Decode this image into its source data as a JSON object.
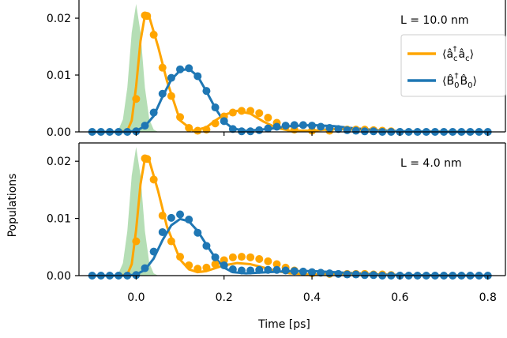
{
  "figure": {
    "ylabel": "Populations",
    "xlabel": "Time [ps]",
    "x_ticks": [
      "0.0",
      "0.2",
      "0.4",
      "0.6",
      "0.8"
    ],
    "legend": {
      "items": [
        {
          "label": "⟨â",
          "sub": "c",
          "sup": "†",
          "label2": "â",
          "sub2": "c",
          "close": "⟩",
          "color": "#ffa500"
        },
        {
          "label": "⟨B̂",
          "sub": "0",
          "sup": "†",
          "label2": "B̂",
          "sub2": "0",
          "close": "⟩",
          "color": "#1f77b4"
        }
      ]
    }
  },
  "chart_data": [
    {
      "type": "line",
      "annotation": "L = 10.0 nm",
      "xlim": [
        -0.13,
        0.84
      ],
      "ylim": [
        0,
        0.022
      ],
      "y_ticks": [
        "0.00",
        "0.01",
        "0.02"
      ],
      "pulse": {
        "color": "#a8d8a8",
        "x": [
          -0.05,
          -0.04,
          -0.03,
          -0.02,
          -0.01,
          0.0,
          0.01,
          0.02,
          0.03,
          0.04,
          0.05
        ],
        "y": [
          0.0,
          0.0004,
          0.0022,
          0.0078,
          0.0175,
          0.0225,
          0.0175,
          0.0078,
          0.0022,
          0.0004,
          0.0
        ]
      },
      "series": [
        {
          "name": "⟨â†c âc⟩",
          "color": "#ffa500",
          "line": {
            "x": [
              -0.04,
              -0.02,
              -0.01,
              0.0,
              0.01,
              0.02,
              0.03,
              0.05,
              0.07,
              0.1,
              0.13,
              0.16,
              0.18,
              0.2,
              0.23,
              0.26,
              0.29,
              0.32,
              0.35,
              0.4,
              0.45,
              0.5,
              0.55,
              0.6,
              0.8
            ],
            "y": [
              0.0,
              0.0002,
              0.002,
              0.008,
              0.016,
              0.0205,
              0.0202,
              0.015,
              0.009,
              0.002,
              0.0002,
              0.0008,
              0.002,
              0.003,
              0.0037,
              0.0032,
              0.0018,
              0.0007,
              0.0002,
              0.0002,
              0.0005,
              0.0004,
              0.0003,
              0.0001,
              0.0
            ]
          },
          "points": {
            "x": [
              0.0,
              0.02,
              0.025,
              0.04,
              0.06,
              0.08,
              0.1,
              0.12,
              0.14,
              0.16,
              0.18,
              0.2,
              0.22,
              0.24,
              0.26,
              0.28,
              0.3,
              0.32,
              0.34,
              0.36,
              0.4,
              0.44,
              0.48,
              0.5,
              0.52,
              0.54,
              0.56,
              0.58
            ],
            "y": [
              0.0058,
              0.0205,
              0.0204,
              0.0171,
              0.0113,
              0.0063,
              0.0026,
              0.0007,
              0.0002,
              0.0004,
              0.0015,
              0.0027,
              0.0034,
              0.0037,
              0.0037,
              0.0033,
              0.0025,
              0.0016,
              0.0009,
              0.0004,
              0.0002,
              0.0002,
              0.0004,
              0.0004,
              0.0004,
              0.0003,
              0.0002,
              0.0001
            ]
          }
        },
        {
          "name": "⟨B̂†0 B̂0⟩",
          "color": "#1f77b4",
          "line": {
            "x": [
              -0.1,
              -0.02,
              0.0,
              0.02,
              0.04,
              0.06,
              0.08,
              0.1,
              0.12,
              0.14,
              0.16,
              0.18,
              0.2,
              0.22,
              0.25,
              0.3,
              0.35,
              0.4,
              0.45,
              0.5,
              0.55,
              0.6,
              0.7,
              0.8
            ],
            "y": [
              0.0,
              0.0,
              0.0002,
              0.001,
              0.0028,
              0.0062,
              0.0092,
              0.0108,
              0.0111,
              0.0098,
              0.0071,
              0.0042,
              0.0018,
              0.0006,
              0.0002,
              0.0005,
              0.001,
              0.0012,
              0.001,
              0.0006,
              0.0003,
              0.0001,
              0.0,
              0.0
            ]
          },
          "points": {
            "x": [
              -0.1,
              -0.08,
              -0.06,
              -0.04,
              -0.02,
              0.0,
              0.02,
              0.04,
              0.06,
              0.08,
              0.1,
              0.12,
              0.14,
              0.16,
              0.18,
              0.2,
              0.22,
              0.24,
              0.26,
              0.28,
              0.3,
              0.32,
              0.34,
              0.36,
              0.38,
              0.4,
              0.42,
              0.44,
              0.46,
              0.48,
              0.5,
              0.52,
              0.54,
              0.56,
              0.58,
              0.6,
              0.62,
              0.64,
              0.66,
              0.68,
              0.7,
              0.72,
              0.74,
              0.76,
              0.78,
              0.8
            ],
            "y": [
              0.0,
              0.0,
              0.0,
              0.0,
              0.0,
              0.0001,
              0.0011,
              0.0034,
              0.0067,
              0.0095,
              0.011,
              0.0112,
              0.0098,
              0.0072,
              0.0043,
              0.0019,
              0.0005,
              0.0001,
              0.0001,
              0.0003,
              0.0006,
              0.0009,
              0.0011,
              0.0012,
              0.0012,
              0.0011,
              0.0009,
              0.0007,
              0.0005,
              0.0003,
              0.0002,
              0.0001,
              0.0001,
              0.0,
              0.0,
              0.0,
              0.0,
              0.0,
              0.0,
              0.0,
              0.0,
              0.0,
              0.0,
              0.0,
              0.0,
              0.0
            ]
          }
        }
      ]
    },
    {
      "type": "line",
      "annotation": "L = 4.0 nm",
      "xlim": [
        -0.13,
        0.84
      ],
      "ylim": [
        0,
        0.022
      ],
      "y_ticks": [
        "0.00",
        "0.01",
        "0.02"
      ],
      "pulse": {
        "color": "#a8d8a8",
        "x": [
          -0.05,
          -0.04,
          -0.03,
          -0.02,
          -0.01,
          0.0,
          0.01,
          0.02,
          0.03,
          0.04,
          0.05
        ],
        "y": [
          0.0,
          0.0004,
          0.0022,
          0.0078,
          0.0175,
          0.0225,
          0.0175,
          0.0078,
          0.0022,
          0.0004,
          0.0
        ]
      },
      "series": [
        {
          "name": "⟨â†c âc⟩",
          "color": "#ffa500",
          "line": {
            "x": [
              -0.04,
              -0.02,
              -0.01,
              0.0,
              0.01,
              0.02,
              0.03,
              0.05,
              0.07,
              0.1,
              0.12,
              0.14,
              0.16,
              0.18,
              0.2,
              0.23,
              0.26,
              0.29,
              0.32,
              0.35,
              0.4,
              0.45,
              0.5,
              0.6,
              0.8
            ],
            "y": [
              0.0,
              0.0002,
              0.002,
              0.008,
              0.016,
              0.0205,
              0.0201,
              0.0148,
              0.0086,
              0.0028,
              0.0011,
              0.0006,
              0.0008,
              0.0013,
              0.0018,
              0.0022,
              0.002,
              0.0014,
              0.0008,
              0.0004,
              0.0002,
              0.0003,
              0.0003,
              0.0001,
              0.0
            ]
          },
          "points": {
            "x": [
              0.0,
              0.02,
              0.025,
              0.04,
              0.06,
              0.08,
              0.1,
              0.12,
              0.14,
              0.16,
              0.18,
              0.2,
              0.22,
              0.24,
              0.26,
              0.28,
              0.3,
              0.32,
              0.34,
              0.36,
              0.4,
              0.44,
              0.48,
              0.5,
              0.52,
              0.54,
              0.56,
              0.58
            ],
            "y": [
              0.006,
              0.0205,
              0.0204,
              0.0168,
              0.0105,
              0.006,
              0.0033,
              0.0018,
              0.0012,
              0.0014,
              0.002,
              0.0027,
              0.0032,
              0.0033,
              0.0032,
              0.0029,
              0.0025,
              0.002,
              0.0014,
              0.0009,
              0.0004,
              0.0003,
              0.0003,
              0.0003,
              0.0003,
              0.0002,
              0.0002,
              0.0001
            ]
          }
        },
        {
          "name": "⟨B̂†0 B̂0⟩",
          "color": "#1f77b4",
          "line": {
            "x": [
              -0.1,
              -0.02,
              0.0,
              0.02,
              0.04,
              0.06,
              0.08,
              0.1,
              0.12,
              0.14,
              0.16,
              0.18,
              0.2,
              0.22,
              0.25,
              0.3,
              0.35,
              0.4,
              0.45,
              0.5,
              0.55,
              0.6,
              0.7,
              0.8
            ],
            "y": [
              0.0,
              0.0,
              0.0002,
              0.001,
              0.003,
              0.0062,
              0.0088,
              0.0099,
              0.0095,
              0.0078,
              0.0054,
              0.0031,
              0.0014,
              0.0006,
              0.0004,
              0.0006,
              0.0008,
              0.0008,
              0.0006,
              0.0004,
              0.0002,
              0.0001,
              0.0,
              0.0
            ]
          },
          "points": {
            "x": [
              -0.1,
              -0.08,
              -0.06,
              -0.04,
              -0.02,
              0.0,
              0.02,
              0.04,
              0.06,
              0.08,
              0.1,
              0.12,
              0.14,
              0.16,
              0.18,
              0.2,
              0.22,
              0.24,
              0.26,
              0.28,
              0.3,
              0.32,
              0.34,
              0.36,
              0.38,
              0.4,
              0.42,
              0.44,
              0.46,
              0.48,
              0.5,
              0.52,
              0.54,
              0.56,
              0.58,
              0.6,
              0.62,
              0.64,
              0.66,
              0.68,
              0.7,
              0.72,
              0.74,
              0.76,
              0.78,
              0.8
            ],
            "y": [
              0.0,
              0.0,
              0.0,
              0.0,
              0.0,
              0.0001,
              0.0013,
              0.0042,
              0.0076,
              0.0101,
              0.0107,
              0.0098,
              0.0075,
              0.0052,
              0.0032,
              0.0018,
              0.0011,
              0.0009,
              0.0009,
              0.001,
              0.001,
              0.001,
              0.0009,
              0.0008,
              0.0007,
              0.0006,
              0.0005,
              0.0004,
              0.0003,
              0.0002,
              0.0002,
              0.0001,
              0.0001,
              0.0,
              0.0,
              0.0,
              0.0,
              0.0,
              0.0,
              0.0,
              0.0,
              0.0,
              0.0,
              0.0,
              0.0,
              0.0
            ]
          }
        }
      ]
    }
  ]
}
